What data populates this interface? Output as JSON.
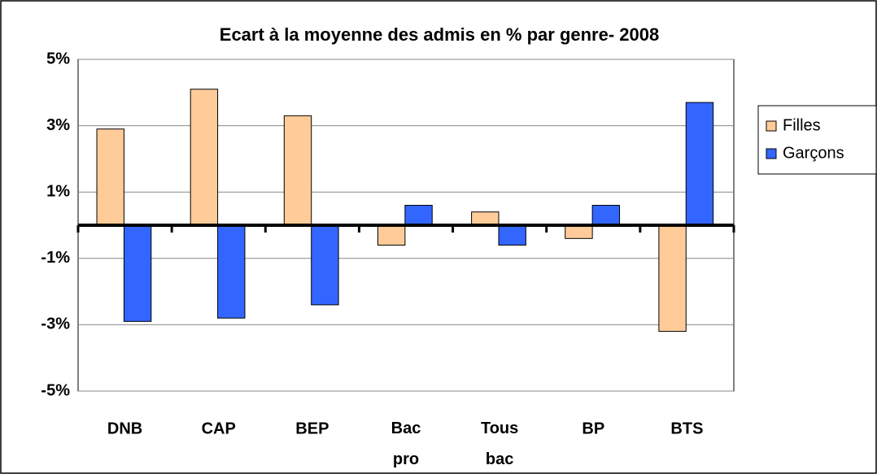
{
  "chart_data": {
    "type": "bar",
    "title": "Ecart à la moyenne des admis en % par genre- 2008",
    "categories": [
      "DNB",
      "CAP",
      "BEP",
      "Bac pro",
      "Tous bac",
      "BP",
      "BTS"
    ],
    "series": [
      {
        "name": "Filles",
        "color": "#FFCC99",
        "values": [
          2.9,
          4.1,
          3.3,
          -0.6,
          0.4,
          -0.4,
          -3.2
        ]
      },
      {
        "name": "Garçons",
        "color": "#3366FF",
        "values": [
          -2.9,
          -2.8,
          -2.4,
          0.6,
          -0.6,
          0.6,
          3.7
        ]
      }
    ],
    "ylim": [
      -5,
      5
    ],
    "yticks": [
      {
        "value": 5,
        "label": "5%"
      },
      {
        "value": 3,
        "label": "3%"
      },
      {
        "value": 1,
        "label": "1%"
      },
      {
        "value": -1,
        "label": "-1%"
      },
      {
        "value": -3,
        "label": "-3%"
      },
      {
        "value": -5,
        "label": "-5%"
      }
    ],
    "grid": true,
    "legend": "right"
  }
}
